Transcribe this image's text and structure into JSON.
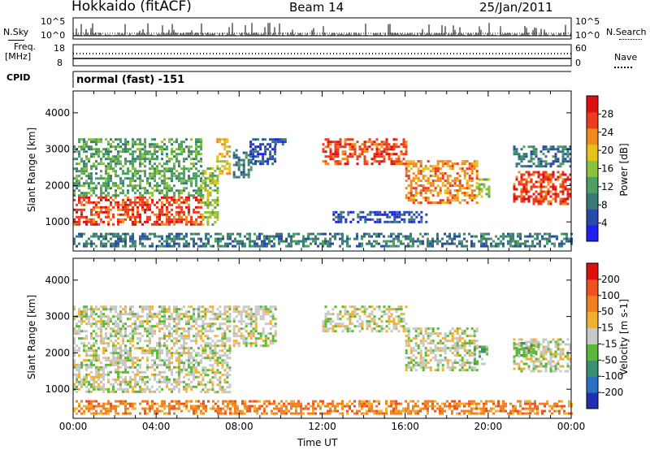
{
  "header": {
    "station": "Hokkaido (fitACF)",
    "beam": "Beam 14",
    "date": "25/Jan/2011",
    "nsky_label": "N.Sky",
    "nsearch_label": "N.Search",
    "nsky_tick_top": "10^5",
    "nsky_tick_bottom": "10^0",
    "nsearch_tick_top": "10^5",
    "nsearch_tick_bottom": "10^0",
    "freq_label_1": "Freq.",
    "freq_label_2": "[MHz]",
    "freq_tick_top": "18",
    "freq_tick_bottom": "8",
    "nave_label": "Nave",
    "nave_tick_top": "60",
    "nave_tick_bottom": "0",
    "cpid_label": "CPID",
    "cpid_text": "normal (fast) -151"
  },
  "x_axis": {
    "label": "Time UT",
    "ticks": [
      "00:00",
      "04:00",
      "08:00",
      "12:00",
      "16:00",
      "20:00",
      "00:00"
    ]
  },
  "chart_data": [
    {
      "type": "heatmap",
      "panel": "power",
      "ylabel": "Slant Range [km]",
      "yticks": [
        1000,
        2000,
        3000,
        4000
      ],
      "ylim": [
        200,
        4600
      ],
      "xlim_hours": [
        0,
        24
      ],
      "colorbar_label": "Power [dB]",
      "colorbar_ticks": [
        "4",
        "8",
        "12",
        "16",
        "20",
        "24",
        "28"
      ],
      "colorbar_colors": [
        "#1e1ef0",
        "#2a4aa8",
        "#3a7a78",
        "#4ea060",
        "#8cc23a",
        "#e8c21a",
        "#f08a1e",
        "#ee3a1e",
        "#dd1010"
      ],
      "regions": [
        {
          "t": [
            0.0,
            6.2
          ],
          "r": [
            900,
            1700
          ],
          "level": 7
        },
        {
          "t": [
            0.0,
            6.2
          ],
          "r": [
            1700,
            3300
          ],
          "level": 3
        },
        {
          "t": [
            6.2,
            7.0
          ],
          "r": [
            900,
            2500
          ],
          "level": 4
        },
        {
          "t": [
            6.9,
            7.6
          ],
          "r": [
            2300,
            3300
          ],
          "level": 5
        },
        {
          "t": [
            7.7,
            8.6
          ],
          "r": [
            2200,
            3000
          ],
          "level": 2
        },
        {
          "t": [
            8.5,
            9.7
          ],
          "r": [
            2600,
            3300
          ],
          "level": 1
        },
        {
          "t": [
            9.7,
            10.2
          ],
          "r": [
            3100,
            3300
          ],
          "level": 1
        },
        {
          "t": [
            12.0,
            16.0
          ],
          "r": [
            2600,
            3300
          ],
          "level": 7
        },
        {
          "t": [
            16.0,
            19.5
          ],
          "r": [
            1500,
            2700
          ],
          "level": 6
        },
        {
          "t": [
            19.4,
            20.0
          ],
          "r": [
            1700,
            2200
          ],
          "level": 4
        },
        {
          "t": [
            21.2,
            24.0
          ],
          "r": [
            1500,
            2400
          ],
          "level": 7
        },
        {
          "t": [
            21.2,
            24.0
          ],
          "r": [
            2500,
            3100
          ],
          "level": 2
        },
        {
          "t": [
            12.5,
            17.0
          ],
          "r": [
            1000,
            1300
          ],
          "level": 1
        },
        {
          "t": [
            0.0,
            24.0
          ],
          "r": [
            300,
            700
          ],
          "level": 2
        }
      ]
    },
    {
      "type": "heatmap",
      "panel": "velocity",
      "ylabel": "Slant Range [km]",
      "yticks": [
        1000,
        2000,
        3000,
        4000
      ],
      "ylim": [
        200,
        4600
      ],
      "xlim_hours": [
        0,
        24
      ],
      "colorbar_label": "Velocity [m s-1]",
      "colorbar_ticks": [
        "200",
        "100",
        "50",
        "15",
        "-15",
        "-50",
        "-100",
        "-200"
      ],
      "colorbar_colors": [
        "#2030b0",
        "#2a70c0",
        "#3a9070",
        "#5ab83a",
        "#c8c8c8",
        "#f0b030",
        "#f08020",
        "#ee5020",
        "#dd1010"
      ],
      "regions": [
        {
          "t": [
            0.0,
            6.2
          ],
          "r": [
            900,
            1700
          ],
          "level": 4
        },
        {
          "t": [
            0.0,
            6.2
          ],
          "r": [
            1700,
            3300
          ],
          "level": 4
        },
        {
          "t": [
            6.2,
            7.6
          ],
          "r": [
            900,
            3300
          ],
          "level": 4
        },
        {
          "t": [
            7.7,
            9.7
          ],
          "r": [
            2200,
            3300
          ],
          "level": 4
        },
        {
          "t": [
            12.0,
            16.0
          ],
          "r": [
            2600,
            3300
          ],
          "level": 4
        },
        {
          "t": [
            16.0,
            19.5
          ],
          "r": [
            1500,
            2700
          ],
          "level": 4
        },
        {
          "t": [
            19.3,
            20.0
          ],
          "r": [
            1700,
            2200
          ],
          "level": 3
        },
        {
          "t": [
            21.2,
            24.0
          ],
          "r": [
            1500,
            2400
          ],
          "level": 4
        },
        {
          "t": [
            21.2,
            22.2
          ],
          "r": [
            1900,
            2300
          ],
          "level": 3
        },
        {
          "t": [
            0.0,
            24.0
          ],
          "r": [
            300,
            700
          ],
          "level": 6
        }
      ]
    }
  ]
}
